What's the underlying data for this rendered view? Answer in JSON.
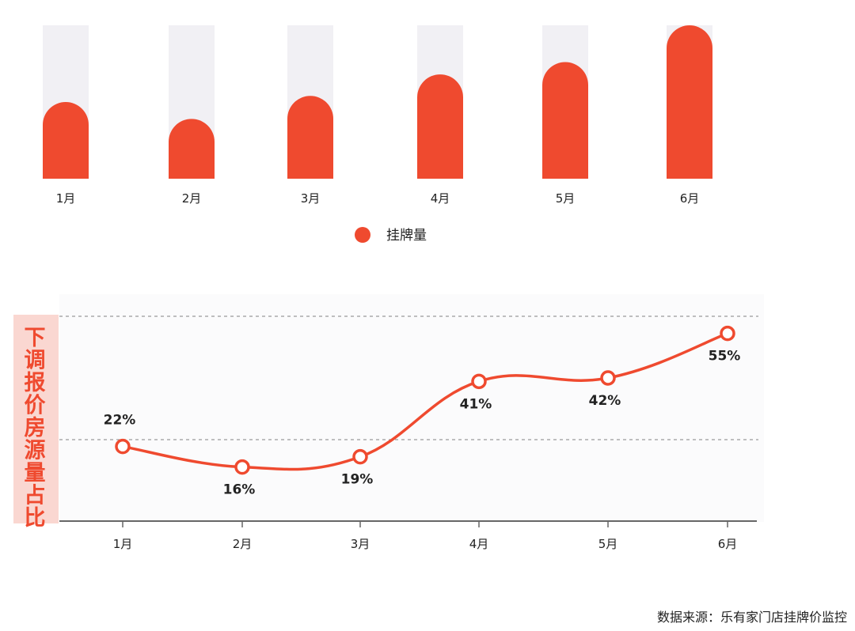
{
  "chart_data": [
    {
      "type": "bar",
      "categories": [
        "1月",
        "2月",
        "3月",
        "4月",
        "5月",
        "6月"
      ],
      "series": [
        {
          "name": "挂牌量",
          "values": [
            50,
            39,
            54,
            68,
            76,
            100
          ]
        }
      ],
      "legend": {
        "position": "bottom-center"
      },
      "colors": {
        "bar": "#ef4a2f",
        "track": "#f1f0f4"
      }
    },
    {
      "type": "line",
      "categories": [
        "1月",
        "2月",
        "3月",
        "4月",
        "5月",
        "6月"
      ],
      "series": [
        {
          "values": [
            22,
            16,
            19,
            41,
            42,
            55
          ]
        }
      ],
      "data_labels": [
        "22%",
        "16%",
        "19%",
        "41%",
        "42%",
        "55%"
      ],
      "ylabel": "下调报价房源量占比",
      "ylim": [
        0,
        60
      ],
      "grid": {
        "dashed_lines_at": [
          24,
          60
        ]
      },
      "colors": {
        "line": "#ef4a2f",
        "ylabel_bg": "#fad7d1",
        "grid": "#9a9a9a",
        "axis": "#666666"
      }
    }
  ],
  "source": "数据来源：乐有家门店挂牌价监控"
}
